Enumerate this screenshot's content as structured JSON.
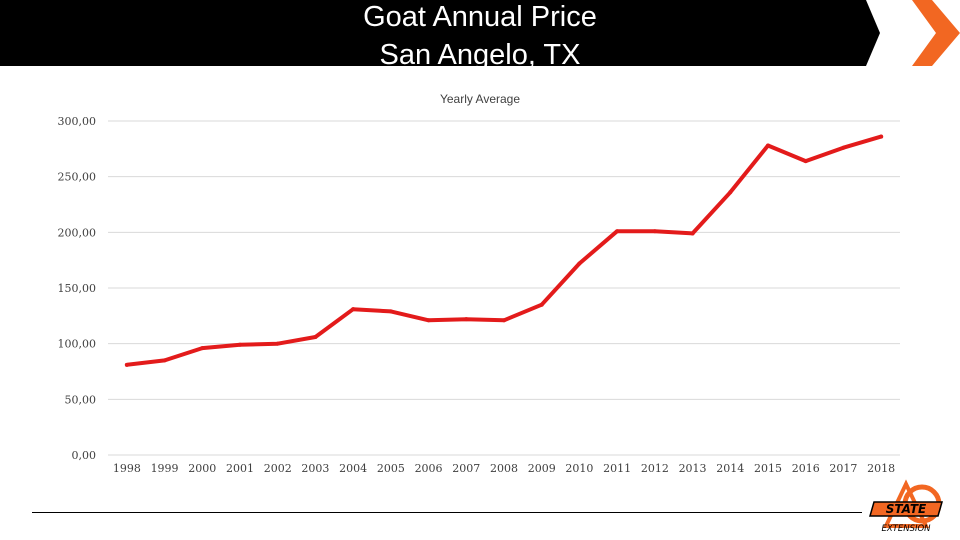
{
  "slide": {
    "title_line1": "Goat Annual Price",
    "title_line2": "San Angelo, TX",
    "accent_color": "#f26722",
    "header_color": "#000000"
  },
  "logo": {
    "icon": "oklahoma-state-extension-logo",
    "text_main": "STATE",
    "text_sub": "EXTENSION"
  },
  "chart_data": {
    "type": "line",
    "title": "Yearly Average",
    "xlabel": "",
    "ylabel": "",
    "categories": [
      "1998",
      "1999",
      "2000",
      "2001",
      "2002",
      "2003",
      "2004",
      "2005",
      "2006",
      "2007",
      "2008",
      "2009",
      "2010",
      "2011",
      "2012",
      "2013",
      "2014",
      "2015",
      "2016",
      "2017",
      "2018"
    ],
    "series": [
      {
        "color": "#e31b1b",
        "values": [
          81,
          85,
          96,
          99,
          100,
          106,
          131,
          129,
          121,
          122,
          121,
          135,
          172,
          201,
          201,
          199,
          236,
          278,
          264,
          276,
          286
        ]
      }
    ],
    "ylim": [
      0,
      300
    ],
    "yticks": [
      "0,00",
      "50,00",
      "100,00",
      "150,00",
      "200,00",
      "250,00",
      "300,00"
    ],
    "ytick_values": [
      0,
      50,
      100,
      150,
      200,
      250,
      300
    ],
    "grid": true,
    "legend": "none"
  }
}
